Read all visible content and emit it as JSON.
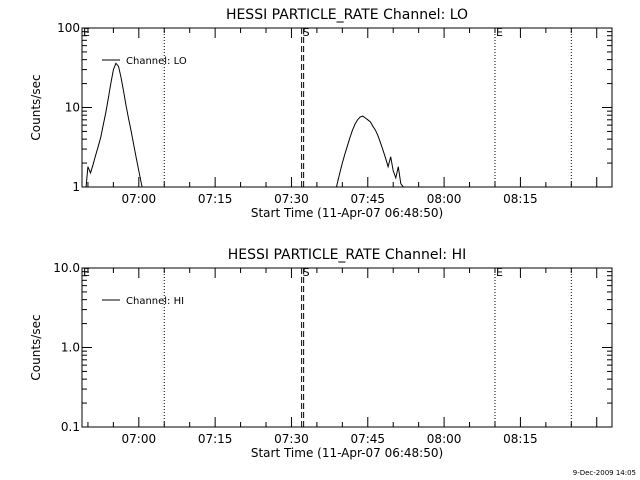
{
  "footer_timestamp": "9-Dec-2009 14:05",
  "chart_data": [
    {
      "type": "line",
      "title": "HESSI PARTICLE_RATE Channel: LO",
      "xlabel": "Start Time (11-Apr-07 06:48:50)",
      "ylabel": "Counts/sec",
      "yscale": "log",
      "ylim": [
        1,
        100
      ],
      "xlim": [
        "06:48:50",
        "08:33:00"
      ],
      "x_ticks": [
        "07:00",
        "07:15",
        "07:30",
        "07:45",
        "08:00",
        "08:15"
      ],
      "y_ticks": [
        "1",
        "10",
        "100"
      ],
      "grid": false,
      "legend": {
        "placement": "top-left",
        "entries": [
          "Channel: LO"
        ]
      },
      "markers": [
        {
          "time": "06:48:50",
          "label": "E",
          "style": "dotted"
        },
        {
          "time": "07:05:00",
          "label": "",
          "style": "dotted"
        },
        {
          "time": "07:32:00",
          "label": "S",
          "style": "dashed"
        },
        {
          "time": "08:10:00",
          "label": "E",
          "style": "dotted"
        },
        {
          "time": "08:25:00",
          "label": "",
          "style": "dotted"
        }
      ],
      "series": [
        {
          "name": "Channel: LO",
          "segments": [
            {
              "x": [
                "06:49:30",
                "06:50:00",
                "06:50:30",
                "06:51:00",
                "06:51:30",
                "06:52:00",
                "06:52:30",
                "06:53:00",
                "06:53:30",
                "06:54:00",
                "06:54:30",
                "06:55:00",
                "06:55:30",
                "06:56:00",
                "06:56:30",
                "06:57:00",
                "06:57:30",
                "06:58:00",
                "06:58:30",
                "06:59:00",
                "06:59:30",
                "07:00:00",
                "07:00:30",
                "07:01:00"
              ],
              "y": [
                0.8,
                1.8,
                1.5,
                1.9,
                2.5,
                3.2,
                4.2,
                6.0,
                8.5,
                13,
                20,
                30,
                36,
                33,
                24,
                16,
                10.5,
                7.2,
                5.0,
                3.4,
                2.3,
                1.6,
                1.1,
                0.8
              ]
            },
            {
              "x": [
                "07:38:30",
                "07:39:00",
                "07:39:30",
                "07:40:00",
                "07:40:30",
                "07:41:00",
                "07:41:30",
                "07:42:00",
                "07:42:30",
                "07:43:00",
                "07:43:30",
                "07:44:00",
                "07:44:30",
                "07:45:00",
                "07:45:30",
                "07:46:00",
                "07:46:30",
                "07:47:00",
                "07:47:30",
                "07:48:00",
                "07:48:30",
                "07:49:00",
                "07:49:30",
                "07:50:00",
                "07:50:30",
                "07:51:00",
                "07:51:30",
                "07:52:00",
                "07:52:30"
              ],
              "y": [
                0.8,
                1.1,
                1.5,
                2.0,
                2.6,
                3.3,
                4.2,
                5.2,
                6.2,
                7.0,
                7.6,
                7.8,
                7.4,
                7.0,
                6.6,
                5.8,
                5.2,
                4.4,
                3.6,
                2.9,
                2.3,
                1.8,
                2.4,
                1.6,
                1.3,
                1.8,
                1.1,
                1.0,
                0.8
              ]
            }
          ]
        }
      ]
    },
    {
      "type": "line",
      "title": "HESSI PARTICLE_RATE Channel: HI",
      "xlabel": "Start Time (11-Apr-07 06:48:50)",
      "ylabel": "Counts/sec",
      "yscale": "log",
      "ylim": [
        0.1,
        10
      ],
      "xlim": [
        "06:48:50",
        "08:33:00"
      ],
      "x_ticks": [
        "07:00",
        "07:15",
        "07:30",
        "07:45",
        "08:00",
        "08:15"
      ],
      "y_ticks": [
        "0.1",
        "1.0",
        "10.0"
      ],
      "grid": false,
      "legend": {
        "placement": "top-left",
        "entries": [
          "Channel: HI"
        ]
      },
      "markers": [
        {
          "time": "06:48:50",
          "label": "E",
          "style": "dotted"
        },
        {
          "time": "07:05:00",
          "label": "",
          "style": "dotted"
        },
        {
          "time": "07:32:00",
          "label": "S",
          "style": "dashed"
        },
        {
          "time": "08:10:00",
          "label": "E",
          "style": "dotted"
        },
        {
          "time": "08:25:00",
          "label": "",
          "style": "dotted"
        }
      ],
      "series": [
        {
          "name": "Channel: HI",
          "segments": []
        }
      ]
    }
  ]
}
